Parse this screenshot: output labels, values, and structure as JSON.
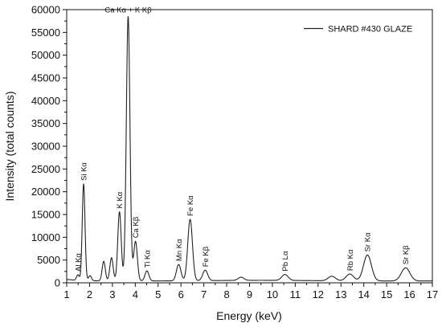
{
  "chart_data": {
    "type": "line",
    "title": "",
    "xlabel": "Energy (keV)",
    "ylabel": "Intensity (total counts)",
    "xlim": [
      1,
      17
    ],
    "ylim": [
      0,
      60000
    ],
    "x_ticks": [
      1,
      2,
      3,
      4,
      5,
      6,
      7,
      8,
      9,
      10,
      11,
      12,
      13,
      14,
      15,
      16,
      17
    ],
    "y_ticks": [
      0,
      5000,
      10000,
      15000,
      20000,
      25000,
      30000,
      35000,
      40000,
      45000,
      50000,
      55000,
      60000
    ],
    "grid": false,
    "legend_position": "top-right",
    "line_color": "#222222",
    "series": [
      {
        "name": "SHARD #430 GLAZE",
        "baseline": 400,
        "peaks": [
          {
            "label": "Al Kα",
            "energy": 1.49,
            "intensity": 1200
          },
          {
            "label": "Si Kα",
            "energy": 1.74,
            "intensity": 21200
          },
          {
            "label": "",
            "energy": 2.02,
            "intensity": 1100
          },
          {
            "label": "",
            "energy": 2.62,
            "intensity": 4300
          },
          {
            "label": "",
            "energy": 2.96,
            "intensity": 5100
          },
          {
            "label": "K Kα",
            "energy": 3.31,
            "intensity": 15200
          },
          {
            "label": "",
            "energy": 3.59,
            "intensity": 2000
          },
          {
            "label": "Ca Kα + K Kβ",
            "energy": 3.69,
            "intensity": 57200
          },
          {
            "label": "Ca Kβ",
            "energy": 4.01,
            "intensity": 8700
          },
          {
            "label": "Ti Kα",
            "energy": 4.51,
            "intensity": 2200
          },
          {
            "label": "Mn Kα",
            "energy": 5.9,
            "intensity": 3600
          },
          {
            "label": "Fe Kα",
            "energy": 6.4,
            "intensity": 13500
          },
          {
            "label": "Fe Kβ",
            "energy": 7.06,
            "intensity": 2300
          },
          {
            "label": "",
            "energy": 8.63,
            "intensity": 700
          },
          {
            "label": "Pb Lα",
            "energy": 10.55,
            "intensity": 1300
          },
          {
            "label": "",
            "energy": 12.6,
            "intensity": 1000
          },
          {
            "label": "Rb Kα",
            "energy": 13.39,
            "intensity": 1500
          },
          {
            "label": "Sr Kα",
            "energy": 14.16,
            "intensity": 5700
          },
          {
            "label": "Sr Kβ",
            "energy": 15.83,
            "intensity": 2900
          }
        ]
      }
    ]
  }
}
